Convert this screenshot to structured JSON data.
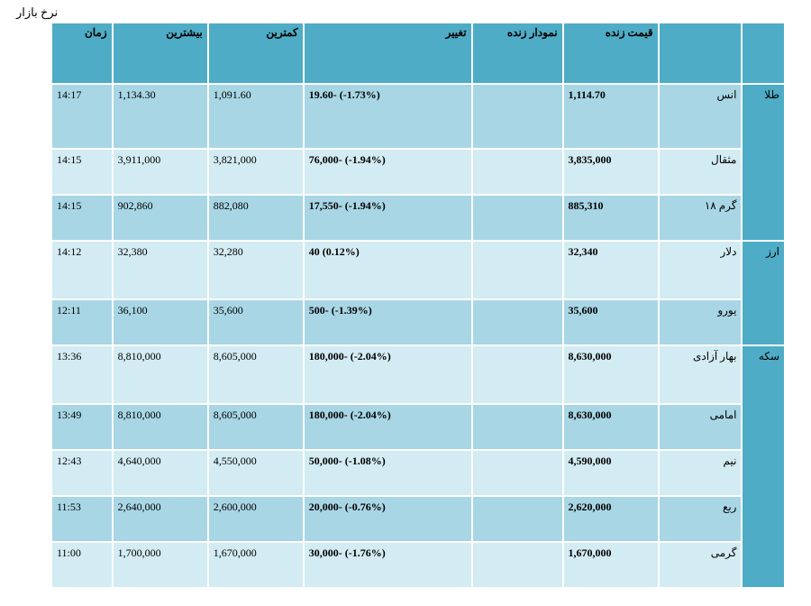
{
  "page_title": "نرخ بازار",
  "headers": {
    "time": "زمان",
    "high": "بیشترین",
    "low": "کمترین",
    "change": "تغییر",
    "chart": "نمودار زنده",
    "price": "قیمت زنده"
  },
  "groups": [
    {
      "category": "طلا",
      "rows": [
        {
          "name": "انس",
          "price": "1,114.70",
          "change": "19.60- (-1.73%)",
          "low": "1,091.60",
          "high": "1,134.30",
          "time": "14:17"
        },
        {
          "name": "مثقال",
          "price": "3,835,000",
          "change": "76,000- (-1.94%)",
          "low": "3,821,000",
          "high": "3,911,000",
          "time": "14:15"
        },
        {
          "name": "گرم ۱۸",
          "price": "885,310",
          "change": "17,550- (-1.94%)",
          "low": "882,080",
          "high": "902,860",
          "time": "14:15"
        }
      ]
    },
    {
      "category": "ارز",
      "rows": [
        {
          "name": "دلار",
          "price": "32,340",
          "change": "40 (0.12%)",
          "low": "32,280",
          "high": "32,380",
          "time": "14:12"
        },
        {
          "name": "یورو",
          "price": "35,600",
          "change": "500- (-1.39%)",
          "low": "35,600",
          "high": "36,100",
          "time": "12:11"
        }
      ]
    },
    {
      "category": "سکه",
      "rows": [
        {
          "name": "بهار آزادی",
          "price": "8,630,000",
          "change": "180,000- (-2.04%)",
          "low": "8,605,000",
          "high": "8,810,000",
          "time": "13:36"
        },
        {
          "name": "امامی",
          "price": "8,630,000",
          "change": "180,000- (-2.04%)",
          "low": "8,605,000",
          "high": "8,810,000",
          "time": "13:49"
        },
        {
          "name": "نیم",
          "price": "4,590,000",
          "change": "50,000- (-1.08%)",
          "low": "4,550,000",
          "high": "4,640,000",
          "time": "12:43"
        },
        {
          "name": "ربع",
          "price": "2,620,000",
          "change": "20,000- (-0.76%)",
          "low": "2,600,000",
          "high": "2,640,000",
          "time": "11:53"
        },
        {
          "name": "گرمی",
          "price": "1,670,000",
          "change": "30,000- (-1.76%)",
          "low": "1,670,000",
          "high": "1,700,000",
          "time": "11:00"
        }
      ]
    }
  ]
}
